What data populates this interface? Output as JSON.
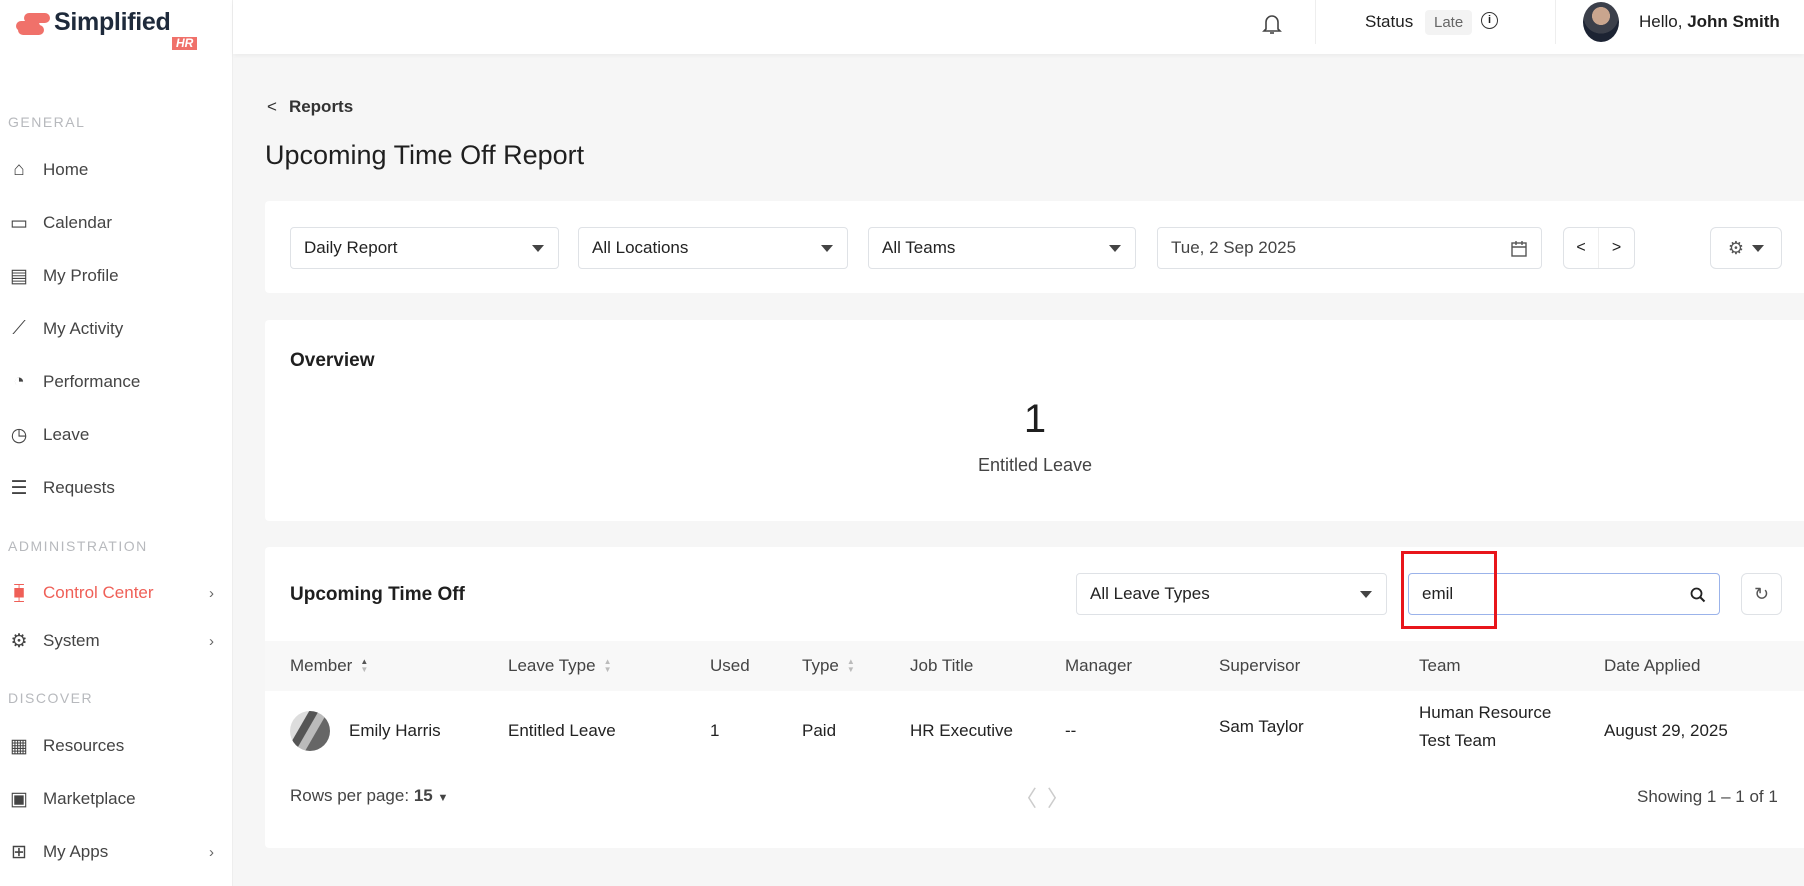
{
  "brand": {
    "name": "Simplified",
    "badge": "HR",
    "color": "#f0716a"
  },
  "sidebar": {
    "sections": [
      "GENERAL",
      "ADMINISTRATION",
      "DISCOVER"
    ],
    "items": [
      {
        "label": "Home",
        "icon": "home-icon"
      },
      {
        "label": "Calendar",
        "icon": "calendar-icon"
      },
      {
        "label": "My Profile",
        "icon": "profile-icon"
      },
      {
        "label": "My Activity",
        "icon": "activity-chart-icon"
      },
      {
        "label": "Performance",
        "icon": "gauge-icon"
      },
      {
        "label": "Leave",
        "icon": "clock-icon"
      },
      {
        "label": "Requests",
        "icon": "requests-icon"
      },
      {
        "label": "Control Center",
        "icon": "sliders-icon",
        "active": true,
        "chevron": true
      },
      {
        "label": "System",
        "icon": "gear-icon",
        "chevron": true
      },
      {
        "label": "Resources",
        "icon": "table-icon"
      },
      {
        "label": "Marketplace",
        "icon": "marketplace-icon"
      },
      {
        "label": "My Apps",
        "icon": "apps-grid-icon",
        "chevron": true
      }
    ]
  },
  "header": {
    "status_label": "Status",
    "status_value": "Late",
    "greeting": "Hello, ",
    "user_name": "John Smith"
  },
  "page": {
    "back_label": "Reports",
    "title": "Upcoming Time Off Report"
  },
  "filters": {
    "report": "Daily Report",
    "location": "All Locations",
    "team": "All Teams",
    "date": "Tue, 2 Sep 2025"
  },
  "overview": {
    "title": "Overview",
    "value": "1",
    "label": "Entitled Leave"
  },
  "table": {
    "title": "Upcoming Time Off",
    "leave_type_filter": "All Leave Types",
    "search_value": "emil",
    "columns": [
      "Member",
      "Leave Type",
      "Used",
      "Type",
      "Job Title",
      "Manager",
      "Supervisor",
      "Team",
      "Date Applied"
    ],
    "rows": [
      {
        "member": "Emily Harris",
        "leave_type": "Entitled Leave",
        "used": "1",
        "type": "Paid",
        "job_title": "HR Executive",
        "manager": "--",
        "supervisor": "Sam Taylor",
        "team_line1": "Human Resource",
        "team_line2": "Test Team",
        "date_applied": "August 29, 2025"
      }
    ],
    "rows_per_page_label": "Rows per page:",
    "rows_per_page": "15",
    "showing": "Showing 1 – 1 of 1"
  },
  "highlight_color": "#e8151b"
}
